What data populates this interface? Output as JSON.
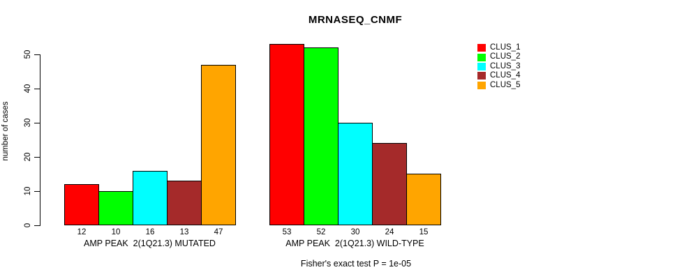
{
  "chart_data": {
    "type": "bar",
    "title": "MRNASEQ_CNMF",
    "xlabel": "",
    "ylabel": "number of cases",
    "ylim": [
      0,
      50
    ],
    "yticks": [
      0,
      10,
      20,
      30,
      40,
      50
    ],
    "grid": false,
    "legend_position": "right",
    "categories": [
      "AMP PEAK  2(1Q21.3) MUTATED",
      "AMP PEAK  2(1Q21.3) WILD-TYPE"
    ],
    "series": [
      {
        "name": "CLUS_1",
        "color": "#FF0000",
        "values": [
          12,
          53
        ]
      },
      {
        "name": "CLUS_2",
        "color": "#00FF00",
        "values": [
          10,
          52
        ]
      },
      {
        "name": "CLUS_3",
        "color": "#00FFFF",
        "values": [
          16,
          30
        ]
      },
      {
        "name": "CLUS_4",
        "color": "#A52A2A",
        "values": [
          13,
          24
        ]
      },
      {
        "name": "CLUS_5",
        "color": "#FFA500",
        "values": [
          47,
          15
        ]
      }
    ],
    "bar_value_labels": true,
    "annotation": "Fisher's exact test P = 1e-05"
  },
  "colors": {
    "bar_outline": "#000000",
    "axis": "#000000",
    "background": "#FFFFFF"
  }
}
